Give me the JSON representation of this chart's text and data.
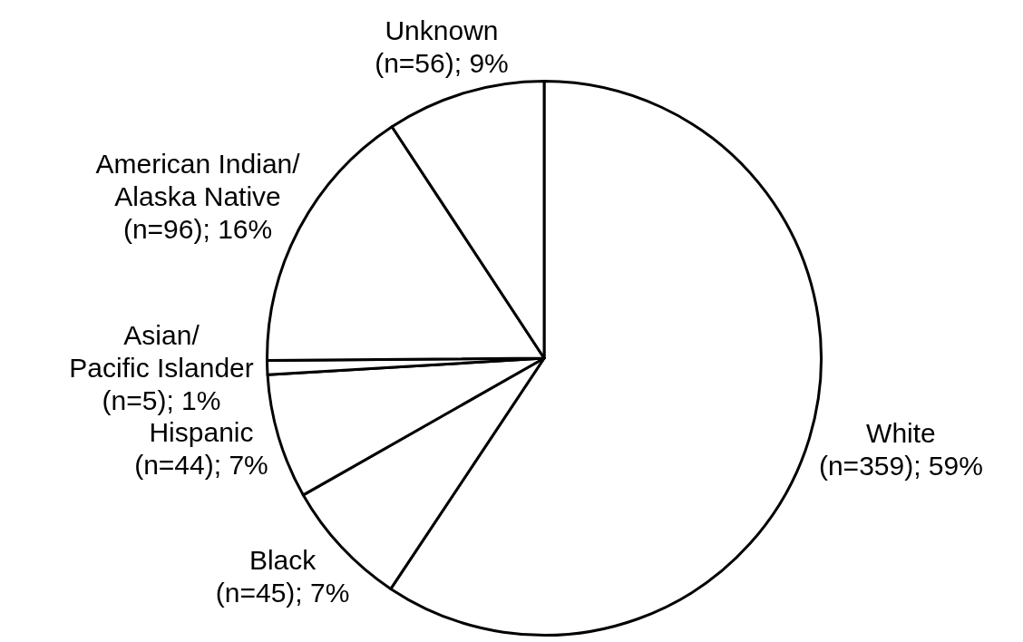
{
  "chart_data": {
    "type": "pie",
    "categories": [
      "White",
      "Black",
      "Hispanic",
      "Asian/Pacific Islander",
      "American Indian/Alaska Native",
      "Unknown"
    ],
    "values": [
      359,
      45,
      44,
      5,
      96,
      56
    ],
    "value_labels": [
      "(n=359); 59%",
      "(n=45); 7%",
      "(n=44); 7%",
      "(n=5); 1%",
      "(n=96); 16%",
      "(n=56); 9%"
    ],
    "colors": [
      "#ffffff",
      "#ffffff",
      "#ffffff",
      "#ffffff",
      "#ffffff",
      "#ffffff"
    ],
    "legend": false
  }
}
